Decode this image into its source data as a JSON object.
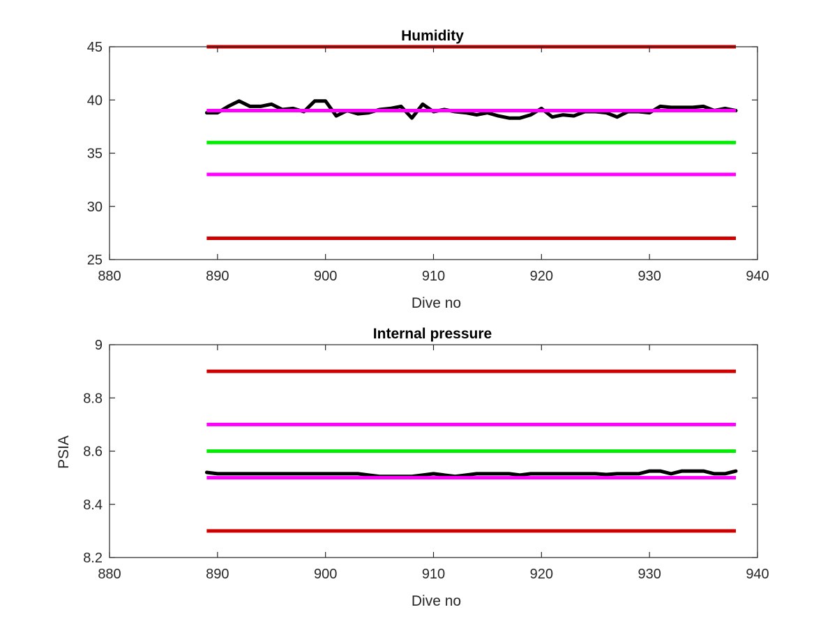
{
  "chart_data": [
    {
      "type": "line",
      "title": "Humidity",
      "xlabel": "Dive no",
      "ylabel": "",
      "xlim": [
        880,
        940
      ],
      "ylim": [
        25,
        45
      ],
      "xticks": [
        "880",
        "890",
        "900",
        "910",
        "920",
        "930",
        "940"
      ],
      "yticks": [
        "25",
        "30",
        "35",
        "40",
        "45"
      ],
      "colors": {
        "red": "#d00000",
        "magenta": "#ff00ff",
        "green": "#00ee00",
        "data": "#000000"
      },
      "reference_lines": [
        {
          "color": "red",
          "y": 45,
          "x": [
            889,
            938
          ]
        },
        {
          "color": "red",
          "y": 27,
          "x": [
            889,
            938
          ]
        },
        {
          "color": "green",
          "y": 36,
          "x": [
            889,
            938
          ]
        },
        {
          "color": "magenta",
          "y": 39,
          "x": [
            889,
            938
          ]
        },
        {
          "color": "magenta",
          "y": 33,
          "x": [
            889,
            938
          ]
        }
      ],
      "series": [
        {
          "color": "data",
          "x": [
            889,
            890,
            891,
            892,
            893,
            894,
            895,
            896,
            897,
            898,
            899,
            900,
            901,
            902,
            903,
            904,
            905,
            906,
            907,
            908,
            909,
            910,
            911,
            912,
            913,
            914,
            915,
            916,
            917,
            918,
            919,
            920,
            921,
            922,
            923,
            924,
            925,
            926,
            927,
            928,
            929,
            930,
            931,
            932,
            933,
            934,
            935,
            936,
            937,
            938
          ],
          "values": [
            38.8,
            38.8,
            39.4,
            39.9,
            39.4,
            39.4,
            39.6,
            39.1,
            39.2,
            38.9,
            39.9,
            39.9,
            38.5,
            39.0,
            38.7,
            38.8,
            39.1,
            39.2,
            39.4,
            38.3,
            39.6,
            38.9,
            39.1,
            38.9,
            38.8,
            38.6,
            38.8,
            38.5,
            38.3,
            38.3,
            38.6,
            39.2,
            38.4,
            38.6,
            38.5,
            38.9,
            38.9,
            38.8,
            38.4,
            38.9,
            38.9,
            38.8,
            39.4,
            39.3,
            39.3,
            39.3,
            39.4,
            39.0,
            39.2,
            39.0
          ]
        }
      ]
    },
    {
      "type": "line",
      "title": "Internal pressure",
      "xlabel": "Dive no",
      "ylabel": "PSIA",
      "xlim": [
        880,
        940
      ],
      "ylim": [
        8.2,
        9.0
      ],
      "xticks": [
        "880",
        "890",
        "900",
        "910",
        "920",
        "930",
        "940"
      ],
      "yticks": [
        "8.2",
        "8.4",
        "8.6",
        "8.8",
        "9"
      ],
      "colors": {
        "red": "#d00000",
        "magenta": "#ff00ff",
        "green": "#00ee00",
        "data": "#000000"
      },
      "reference_lines": [
        {
          "color": "red",
          "y": 8.9,
          "x": [
            889,
            938
          ]
        },
        {
          "color": "red",
          "y": 8.3,
          "x": [
            889,
            938
          ]
        },
        {
          "color": "green",
          "y": 8.6,
          "x": [
            889,
            938
          ]
        },
        {
          "color": "magenta",
          "y": 8.7,
          "x": [
            889,
            938
          ]
        },
        {
          "color": "magenta",
          "y": 8.5,
          "x": [
            889,
            938
          ]
        }
      ],
      "series": [
        {
          "color": "data",
          "x": [
            889,
            890,
            891,
            892,
            893,
            894,
            895,
            896,
            897,
            898,
            899,
            900,
            901,
            902,
            903,
            904,
            905,
            906,
            907,
            908,
            909,
            910,
            911,
            912,
            913,
            914,
            915,
            916,
            917,
            918,
            919,
            920,
            921,
            922,
            923,
            924,
            925,
            926,
            927,
            928,
            929,
            930,
            931,
            932,
            933,
            934,
            935,
            936,
            937,
            938
          ],
          "values": [
            8.52,
            8.515,
            8.515,
            8.515,
            8.515,
            8.515,
            8.515,
            8.515,
            8.515,
            8.515,
            8.515,
            8.515,
            8.515,
            8.515,
            8.515,
            8.51,
            8.505,
            8.505,
            8.505,
            8.505,
            8.51,
            8.515,
            8.51,
            8.505,
            8.51,
            8.515,
            8.515,
            8.515,
            8.515,
            8.51,
            8.515,
            8.515,
            8.515,
            8.515,
            8.515,
            8.515,
            8.515,
            8.512,
            8.515,
            8.515,
            8.515,
            8.525,
            8.525,
            8.515,
            8.525,
            8.525,
            8.525,
            8.515,
            8.515,
            8.525
          ]
        }
      ]
    }
  ]
}
